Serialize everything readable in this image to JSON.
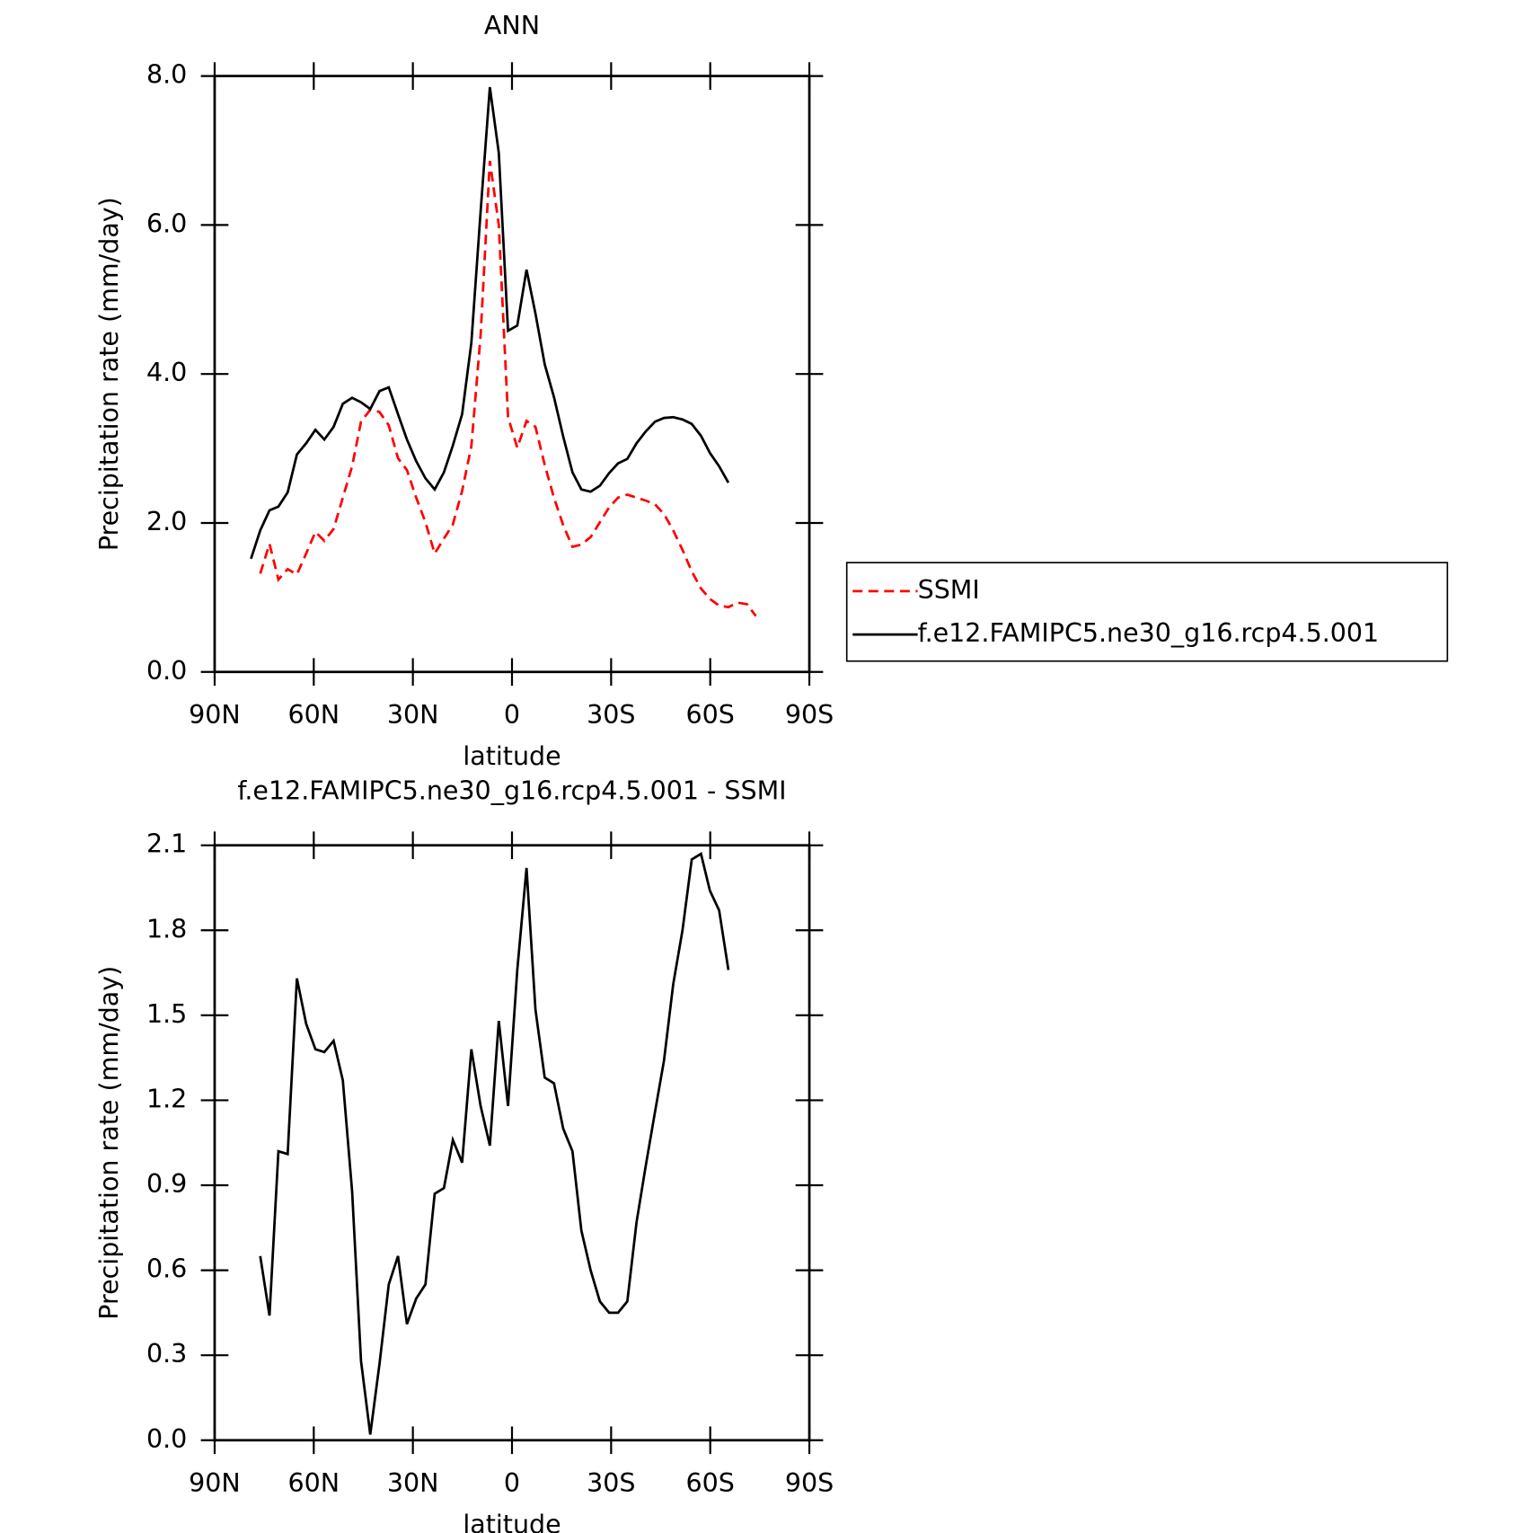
{
  "chart_data": [
    {
      "type": "line",
      "title": "ANN",
      "xlabel": "latitude",
      "ylabel": "Precipitation rate (mm/day)",
      "xlim": [
        90,
        -90
      ],
      "xticks": [
        {
          "value": 90,
          "label": "90N"
        },
        {
          "value": 60,
          "label": "60N"
        },
        {
          "value": 30,
          "label": "30N"
        },
        0,
        {
          "value": -30,
          "label": "30S"
        },
        {
          "value": -60,
          "label": "60S"
        },
        {
          "value": -90,
          "label": "90S"
        }
      ],
      "ylim": [
        0,
        8
      ],
      "yticks": [
        {
          "value": 0,
          "label": "0.0"
        },
        {
          "value": 2,
          "label": "2.0"
        },
        {
          "value": 4,
          "label": "4.0"
        },
        {
          "value": 6,
          "label": "6.0"
        },
        {
          "value": 8,
          "label": "8.0"
        }
      ],
      "legend": "right",
      "series": [
        {
          "name": "SSMI",
          "color": "#ff0000",
          "dashed": true,
          "x": [
            76.2,
            73.4,
            70.7,
            67.9,
            65.1,
            62.3,
            59.5,
            56.8,
            54.0,
            51.2,
            48.4,
            45.7,
            42.9,
            40.1,
            37.3,
            34.5,
            31.8,
            29.0,
            26.2,
            23.4,
            20.6,
            17.9,
            15.1,
            12.3,
            9.5,
            6.7,
            4.0,
            1.2,
            -1.6,
            -4.4,
            -7.1,
            -9.9,
            -12.7,
            -15.5,
            -18.3,
            -21.0,
            -23.8,
            -26.6,
            -29.4,
            -32.1,
            -34.9,
            -37.7,
            -40.5,
            -43.3,
            -46.0,
            -48.8,
            -51.6,
            -54.4,
            -57.2,
            -59.9,
            -62.7,
            -65.5,
            -68.3,
            -71.1,
            -73.8
          ],
          "values": [
            1.32,
            1.72,
            1.24,
            1.38,
            1.31,
            1.59,
            1.88,
            1.76,
            1.92,
            2.34,
            2.76,
            3.36,
            3.52,
            3.49,
            3.31,
            2.87,
            2.71,
            2.34,
            2.01,
            1.59,
            1.79,
            1.98,
            2.43,
            3.03,
            4.52,
            6.86,
            6.0,
            3.42,
            3.01,
            3.37,
            3.29,
            2.78,
            2.34,
            1.97,
            1.68,
            1.71,
            1.81,
            2.01,
            2.21,
            2.34,
            2.38,
            2.34,
            2.3,
            2.25,
            2.12,
            1.9,
            1.64,
            1.35,
            1.12,
            0.98,
            0.89,
            0.87,
            0.93,
            0.91,
            0.75
          ]
        },
        {
          "name": "f.e12.FAMIPC5.ne30_g16.rcp4.5.001",
          "color": "#000000",
          "dashed": false,
          "x": [
            79.0,
            76.2,
            73.4,
            70.7,
            67.9,
            65.1,
            62.3,
            59.5,
            56.8,
            54.0,
            51.2,
            48.4,
            45.7,
            42.9,
            40.1,
            37.3,
            34.5,
            31.8,
            29.0,
            26.2,
            23.4,
            20.6,
            17.9,
            15.1,
            12.3,
            9.5,
            6.7,
            4.0,
            1.2,
            -1.6,
            -4.4,
            -7.1,
            -9.9,
            -12.7,
            -15.5,
            -18.3,
            -21.0,
            -23.8,
            -26.6,
            -29.4,
            -32.1,
            -34.9,
            -37.7,
            -40.5,
            -43.3,
            -46.0,
            -48.8,
            -51.6,
            -54.4,
            -57.2,
            -59.9,
            -62.7,
            -65.5
          ],
          "values": [
            1.52,
            1.9,
            2.17,
            2.22,
            2.41,
            2.92,
            3.07,
            3.25,
            3.12,
            3.29,
            3.6,
            3.68,
            3.62,
            3.53,
            3.77,
            3.82,
            3.46,
            3.12,
            2.83,
            2.6,
            2.45,
            2.68,
            3.04,
            3.46,
            4.42,
            6.18,
            7.85,
            6.97,
            4.58,
            4.65,
            5.4,
            4.81,
            4.13,
            3.69,
            3.16,
            2.68,
            2.45,
            2.42,
            2.5,
            2.67,
            2.8,
            2.86,
            3.07,
            3.23,
            3.36,
            3.41,
            3.42,
            3.39,
            3.33,
            3.17,
            2.94,
            2.76,
            2.54
          ]
        }
      ]
    },
    {
      "type": "line",
      "title": "f.e12.FAMIPC5.ne30_g16.rcp4.5.001 - SSMI",
      "xlabel": "latitude",
      "ylabel": "Precipitation rate (mm/day)",
      "xlim": [
        90,
        -90
      ],
      "xticks": [
        {
          "value": 90,
          "label": "90N"
        },
        {
          "value": 60,
          "label": "60N"
        },
        {
          "value": 30,
          "label": "30N"
        },
        0,
        {
          "value": -30,
          "label": "30S"
        },
        {
          "value": -60,
          "label": "60S"
        },
        {
          "value": -90,
          "label": "90S"
        }
      ],
      "ylim": [
        0,
        2.1
      ],
      "yticks": [
        {
          "value": 0,
          "label": "0.0"
        },
        0.3,
        0.6,
        0.9,
        1.2,
        1.5,
        1.8,
        2.1
      ],
      "series": [
        {
          "color": "#000000",
          "dashed": false,
          "x": [
            76.2,
            73.4,
            70.7,
            67.9,
            65.1,
            62.3,
            59.5,
            56.8,
            54.0,
            51.2,
            48.4,
            45.7,
            42.9,
            40.1,
            37.3,
            34.5,
            31.8,
            29.0,
            26.2,
            23.4,
            20.6,
            17.9,
            15.1,
            12.3,
            9.5,
            6.7,
            4.0,
            1.2,
            -1.6,
            -4.4,
            -7.1,
            -9.9,
            -12.7,
            -15.5,
            -18.3,
            -21.0,
            -23.8,
            -26.6,
            -29.4,
            -32.1,
            -34.9,
            -37.7,
            -40.5,
            -43.3,
            -46.0,
            -48.8,
            -51.6,
            -54.4,
            -57.2,
            -59.9,
            -62.7,
            -65.5
          ],
          "values": [
            0.65,
            0.44,
            1.02,
            1.01,
            1.63,
            1.47,
            1.38,
            1.37,
            1.41,
            1.27,
            0.88,
            0.28,
            0.02,
            0.27,
            0.55,
            0.65,
            0.41,
            0.5,
            0.55,
            0.87,
            0.89,
            1.06,
            0.98,
            1.38,
            1.18,
            1.04,
            1.48,
            1.18,
            1.66,
            2.02,
            1.52,
            1.28,
            1.26,
            1.1,
            1.02,
            0.74,
            0.6,
            0.49,
            0.45,
            0.45,
            0.49,
            0.77,
            0.97,
            1.16,
            1.34,
            1.61,
            1.8,
            2.05,
            2.07,
            1.94,
            1.87,
            1.66
          ]
        }
      ]
    }
  ]
}
